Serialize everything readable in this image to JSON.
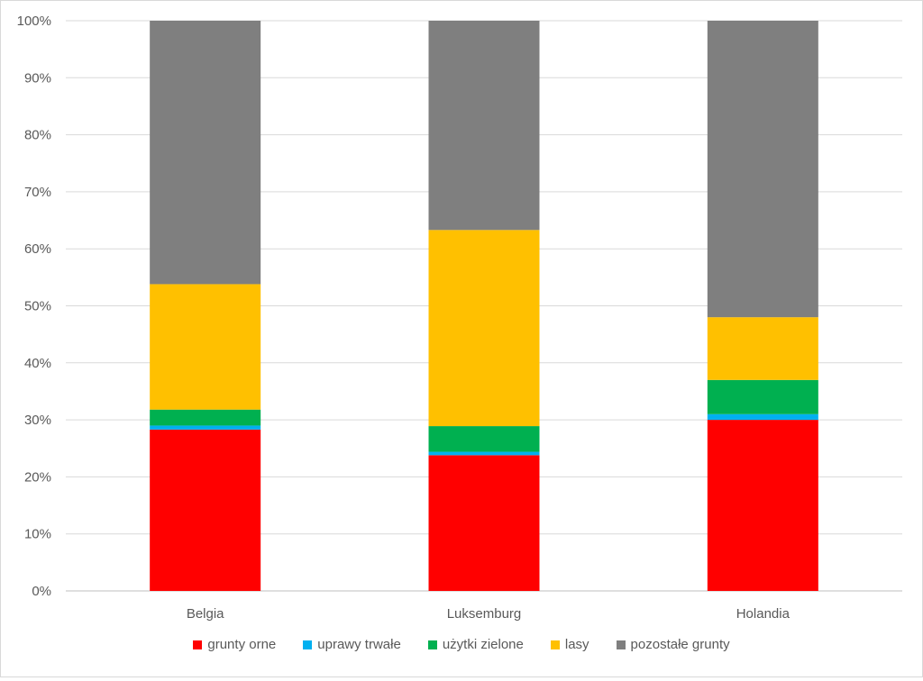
{
  "chart_data": {
    "type": "bar",
    "stacked": true,
    "normalized_percent": true,
    "categories": [
      "Belgia",
      "Luksemburg",
      "Holandia"
    ],
    "series": [
      {
        "name": "grunty orne",
        "color": "#ff0000",
        "values": [
          28.3,
          23.8,
          30.0
        ]
      },
      {
        "name": "uprawy trwałe",
        "color": "#00b0f0",
        "values": [
          0.7,
          0.6,
          1.0
        ]
      },
      {
        "name": "użytki zielone",
        "color": "#00b050",
        "values": [
          2.8,
          4.5,
          6.0
        ]
      },
      {
        "name": "lasy",
        "color": "#ffc000",
        "values": [
          22.0,
          34.4,
          11.0
        ]
      },
      {
        "name": "pozostałe grunty",
        "color": "#7f7f7f",
        "values": [
          46.2,
          36.7,
          52.0
        ]
      }
    ],
    "y_ticks": [
      "0%",
      "10%",
      "20%",
      "30%",
      "40%",
      "50%",
      "60%",
      "70%",
      "80%",
      "90%",
      "100%"
    ],
    "ylim": [
      0,
      100
    ],
    "grid": true,
    "legend_position": "bottom",
    "title": "",
    "xlabel": "",
    "ylabel": ""
  }
}
